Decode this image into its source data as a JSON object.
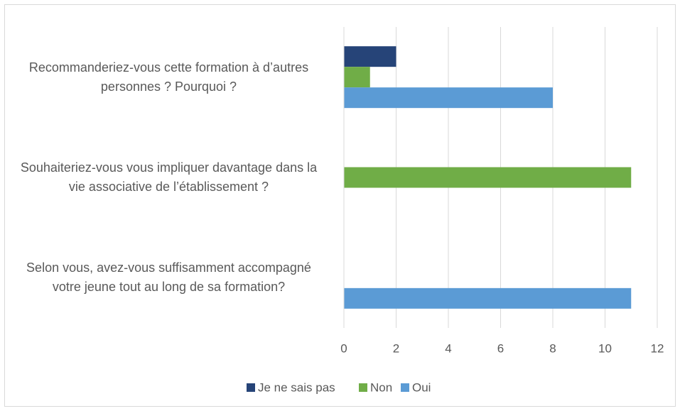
{
  "chart_data": {
    "type": "bar",
    "orientation": "horizontal",
    "categories": [
      "Recommanderiez-vous cette formation à d’autres personnes ? Pourquoi ?",
      "Souhaiteriez-vous vous impliquer davantage dans la vie associative de l’établissement ?",
      "Selon vous, avez-vous suffisamment accompagné votre jeune tout au long de sa formation?"
    ],
    "series": [
      {
        "name": "Je ne sais pas",
        "color": "#264478",
        "values": [
          2,
          0,
          0
        ]
      },
      {
        "name": "Non",
        "color": "#70ad47",
        "values": [
          1,
          11,
          0
        ]
      },
      {
        "name": "Oui",
        "color": "#5b9bd5",
        "values": [
          8,
          0,
          11
        ]
      }
    ],
    "xlim": [
      0,
      12
    ],
    "xticks": [
      0,
      2,
      4,
      6,
      8,
      10,
      12
    ],
    "grid": true,
    "legend": "bottom"
  }
}
